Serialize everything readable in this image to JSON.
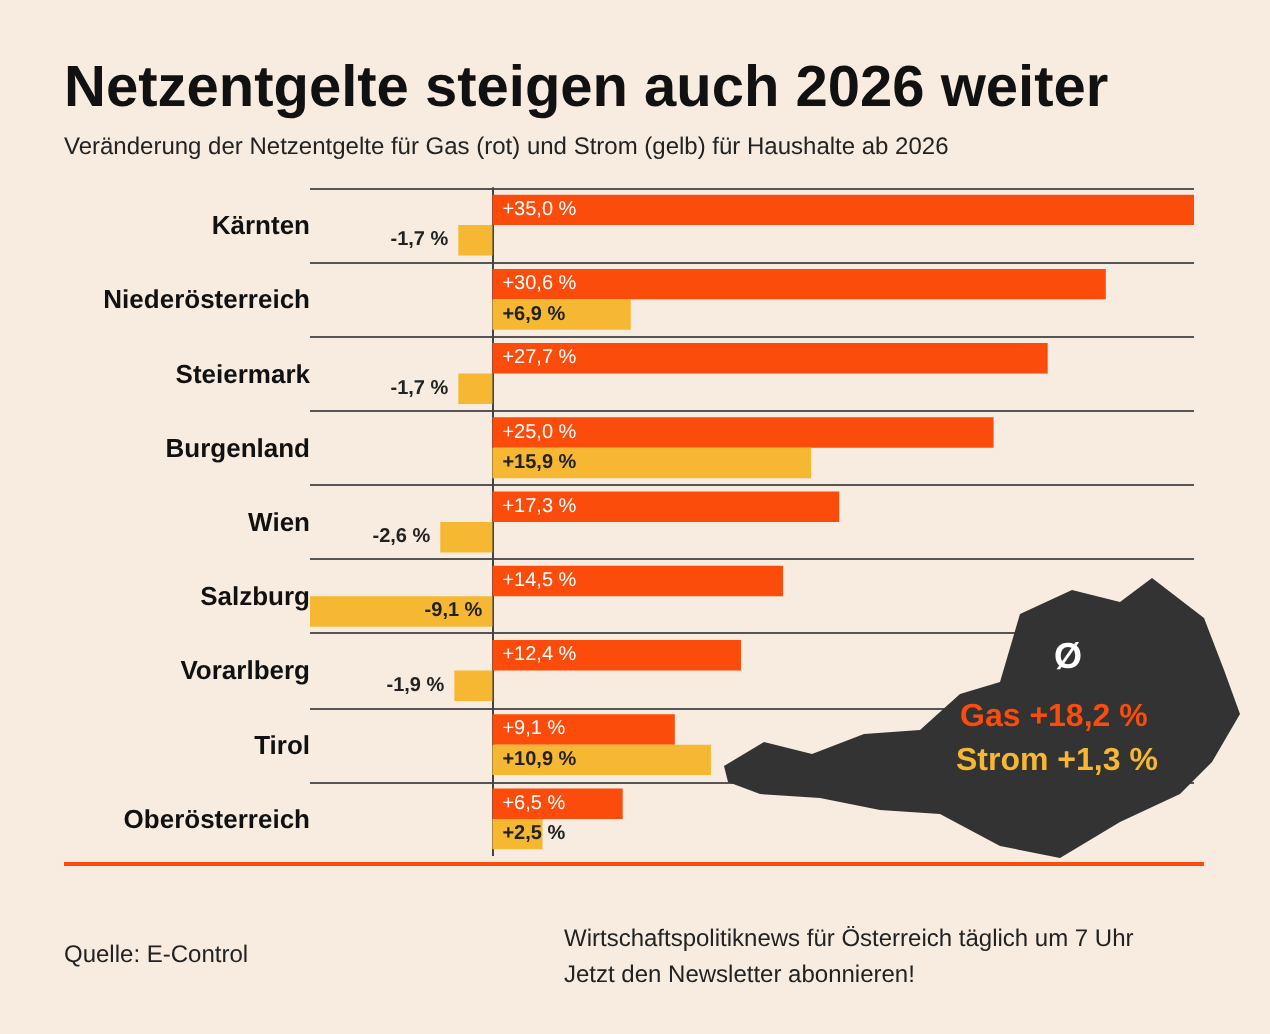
{
  "chart_data": {
    "type": "bar",
    "orientation": "horizontal",
    "title": "Netzentgelte steigen auch 2026 weiter",
    "subtitle": "Veränderung der Netzentgelte für Gas (rot) und Strom (gelb) für Haushalte ab 2026",
    "categories": [
      "Kärnten",
      "Niederösterreich",
      "Steiermark",
      "Burgenland",
      "Wien",
      "Salzburg",
      "Vorarlberg",
      "Tirol",
      "Oberösterreich"
    ],
    "series": [
      {
        "color": "#fc4c0c",
        "values": [
          35.0,
          30.6,
          27.7,
          25.0,
          17.3,
          14.5,
          12.4,
          9.1,
          6.5
        ],
        "value_labels": [
          "+35,0 %",
          "+30,6 %",
          "+27,7 %",
          "+25,0 %",
          "+17,3 %",
          "+14,5 %",
          "+12,4 %",
          "+9,1 %",
          "+6,5 %"
        ]
      },
      {
        "color": "#f6b833",
        "values": [
          -1.7,
          6.9,
          -1.7,
          15.9,
          -2.6,
          -9.1,
          -1.9,
          10.9,
          2.5
        ],
        "value_labels": [
          "-1,7 %",
          "+6,9 %",
          "-1,7 %",
          "+15,9 %",
          "-2,6 %",
          "-9,1 %",
          "-1,9 %",
          "+10,9 %",
          "+2,5 %"
        ]
      }
    ],
    "grid": "y",
    "annotations": [
      "Ø",
      "Gas +18,2 %",
      "Strom +1,3 %",
      "Quelle: E-Control",
      "Wirtschaftspolitiknews für Österreich täglich um 7 Uhr",
      "Jetzt den Newsletter abonnieren!"
    ]
  }
}
